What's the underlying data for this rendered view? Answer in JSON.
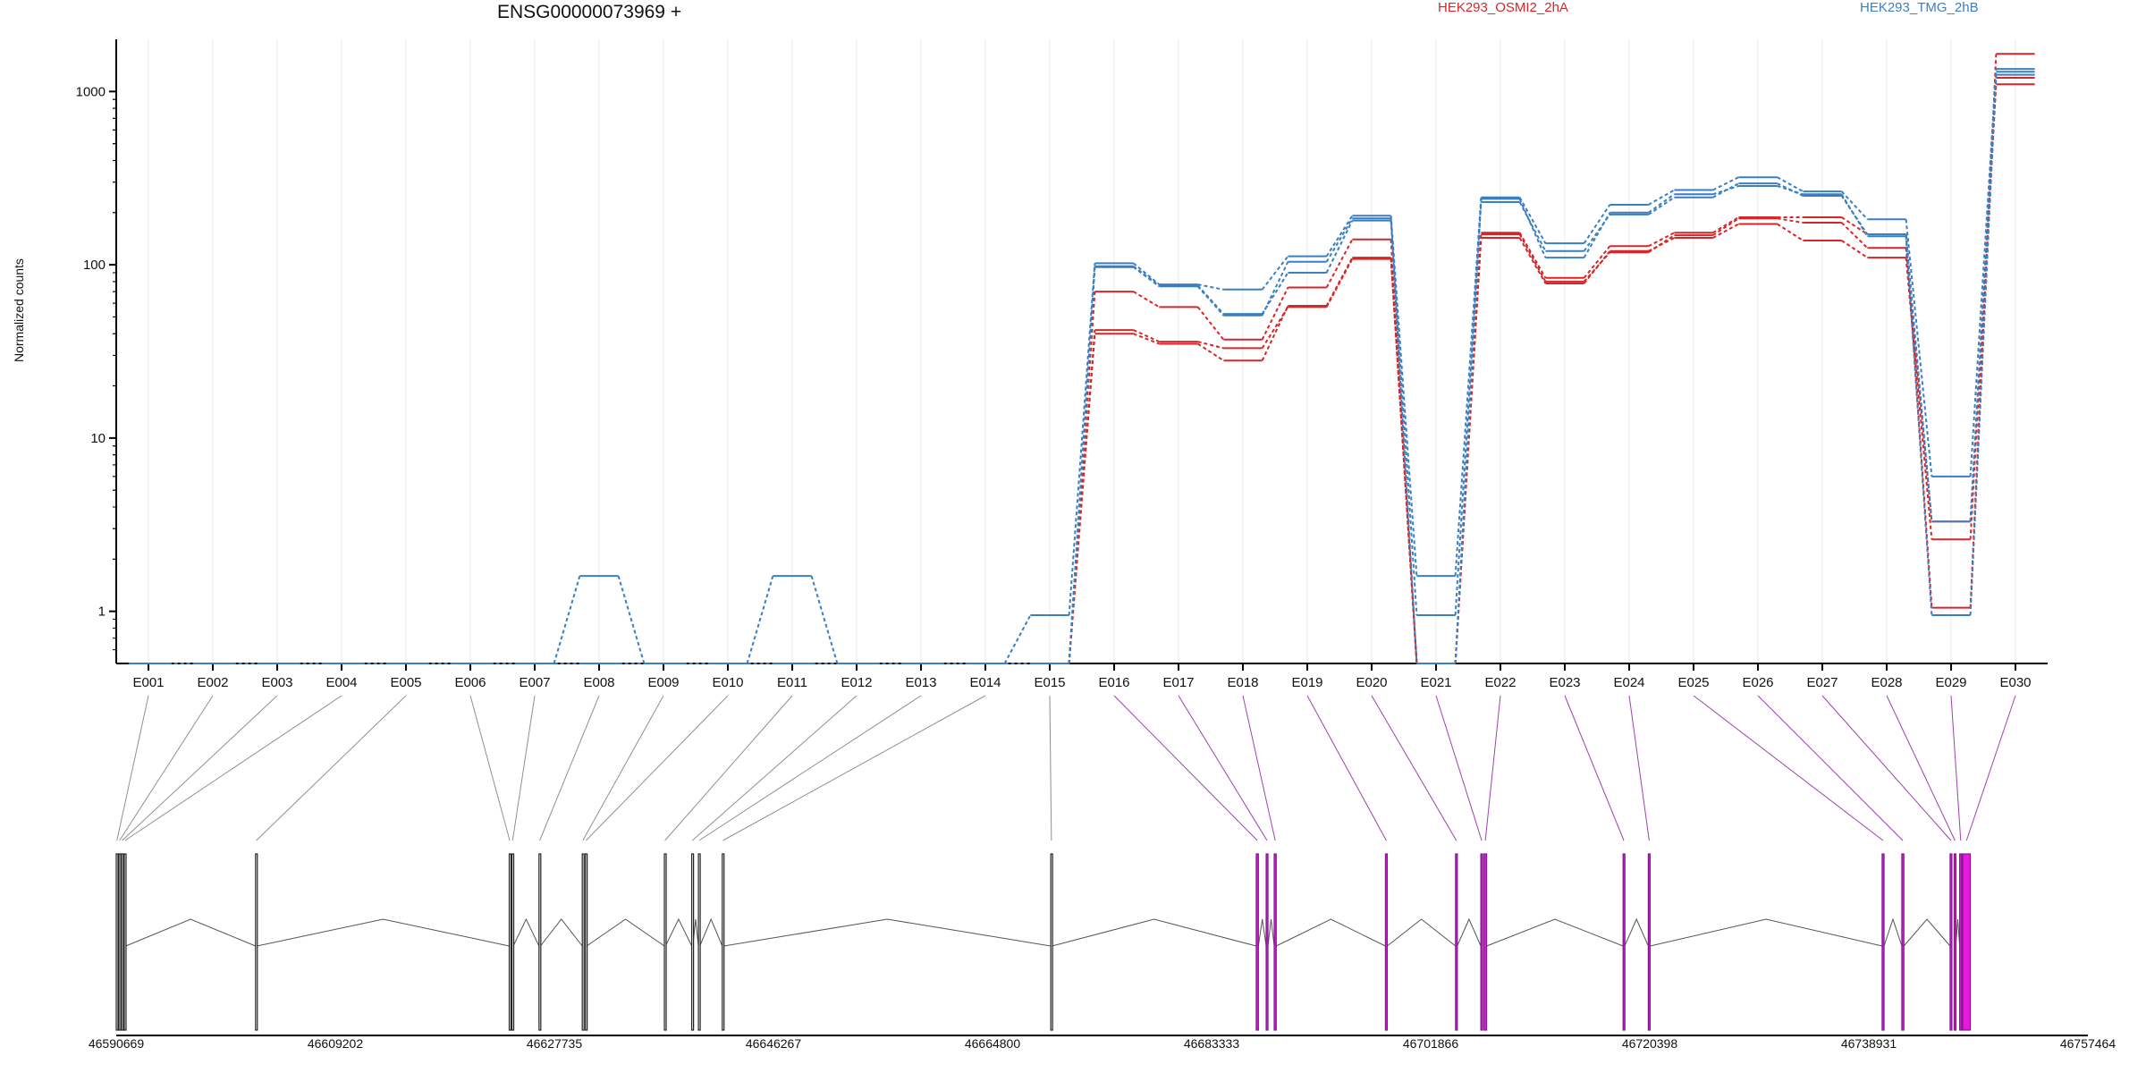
{
  "chart_data": {
    "type": "line",
    "title": "ENSG00000073969 +",
    "ylabel": "Normalized counts",
    "yscale": "log",
    "ylim": [
      0.5,
      2000
    ],
    "yticks": [
      1,
      10,
      100,
      1000
    ],
    "ytick_labels": [
      "1",
      "10",
      "100",
      "1000"
    ],
    "legend": [
      {
        "name": "HEK293_OSMI2_2hA",
        "color": "#d62728"
      },
      {
        "name": "HEK293_TMG_2hB",
        "color": "#3a7fc0"
      }
    ],
    "exons": [
      "E001",
      "E002",
      "E003",
      "E004",
      "E005",
      "E006",
      "E007",
      "E008",
      "E009",
      "E010",
      "E011",
      "E012",
      "E013",
      "E014",
      "E015",
      "E016",
      "E017",
      "E018",
      "E019",
      "E020",
      "E021",
      "E022",
      "E023",
      "E024",
      "E025",
      "E026",
      "E027",
      "E028",
      "E029",
      "E030"
    ],
    "series": [
      {
        "group": "HEK293_OSMI2_2hA",
        "color": "#d62728",
        "values": [
          0.5,
          0.5,
          0.5,
          0.5,
          0.5,
          0.5,
          0.5,
          0.5,
          0.5,
          0.5,
          0.5,
          0.5,
          0.5,
          0.5,
          0.5,
          70,
          57,
          37,
          74,
          140,
          0.5,
          153,
          84,
          128,
          153,
          188,
          188,
          150,
          1.05,
          1650
        ]
      },
      {
        "group": "HEK293_OSMI2_2hA",
        "color": "#d62728",
        "values": [
          0.5,
          0.5,
          0.5,
          0.5,
          0.5,
          0.5,
          0.5,
          0.5,
          0.5,
          0.5,
          0.5,
          0.5,
          0.5,
          0.5,
          0.5,
          42,
          36,
          33,
          57,
          108,
          0.5,
          143,
          78,
          120,
          143,
          172,
          138,
          110,
          2.6,
          1100
        ]
      },
      {
        "group": "HEK293_OSMI2_2hA",
        "color": "#d62728",
        "values": [
          0.5,
          0.5,
          0.5,
          0.5,
          0.5,
          0.5,
          0.5,
          0.5,
          0.5,
          0.5,
          0.5,
          0.5,
          0.5,
          0.5,
          0.5,
          40,
          35,
          28,
          58,
          110,
          0.5,
          150,
          80,
          118,
          148,
          185,
          175,
          125,
          3.3,
          1200
        ]
      },
      {
        "group": "HEK293_TMG_2hB",
        "color": "#3a7fc0",
        "values": [
          0.5,
          0.5,
          0.5,
          0.5,
          0.5,
          0.5,
          0.5,
          1.6,
          0.5,
          0.5,
          1.6,
          0.5,
          0.5,
          0.5,
          0.95,
          102,
          77,
          72,
          112,
          192,
          1.6,
          245,
          133,
          222,
          270,
          320,
          265,
          183,
          6.0,
          1350
        ]
      },
      {
        "group": "HEK293_TMG_2hB",
        "color": "#3a7fc0",
        "values": [
          0.5,
          0.5,
          0.5,
          0.5,
          0.5,
          0.5,
          0.5,
          0.5,
          0.5,
          0.5,
          0.5,
          0.5,
          0.5,
          0.5,
          0.5,
          98,
          76,
          52,
          90,
          180,
          0.95,
          230,
          120,
          195,
          245,
          295,
          250,
          150,
          3.3,
          1250
        ]
      },
      {
        "group": "HEK293_TMG_2hB",
        "color": "#3a7fc0",
        "values": [
          0.5,
          0.5,
          0.5,
          0.5,
          0.5,
          0.5,
          0.5,
          0.5,
          0.5,
          0.5,
          0.5,
          0.5,
          0.5,
          0.5,
          0.5,
          97,
          75,
          51,
          104,
          185,
          0.5,
          240,
          110,
          200,
          255,
          285,
          255,
          146,
          0.95,
          1300
        ]
      }
    ],
    "genome_axis": {
      "tick_labels": [
        "46590669",
        "46609202",
        "46627735",
        "46646267",
        "46664800",
        "46683333",
        "46701866",
        "46720398",
        "46738931",
        "46757464"
      ],
      "start": 46590669,
      "end": 46757464
    },
    "exon_coordinates": [
      {
        "id": "E001",
        "start": 46590669,
        "end": 46590779
      },
      {
        "id": "E002",
        "start": 46590899,
        "end": 46590989
      },
      {
        "id": "E003",
        "start": 46591119,
        "end": 46591229
      },
      {
        "id": "E004",
        "start": 46591349,
        "end": 46591469
      },
      {
        "id": "E005",
        "start": 46602454,
        "end": 46602574
      },
      {
        "id": "E006",
        "start": 46623915,
        "end": 46624005
      },
      {
        "id": "E007",
        "start": 46624145,
        "end": 46624255
      },
      {
        "id": "E008",
        "start": 46626435,
        "end": 46626555
      },
      {
        "id": "E009",
        "start": 46630094,
        "end": 46630184
      },
      {
        "id": "E010",
        "start": 46630354,
        "end": 46630464
      },
      {
        "id": "E011",
        "start": 46637040,
        "end": 46637130
      },
      {
        "id": "E012",
        "start": 46639355,
        "end": 46639445
      },
      {
        "id": "E013",
        "start": 46639920,
        "end": 46640040
      },
      {
        "id": "E014",
        "start": 46641935,
        "end": 46642055
      },
      {
        "id": "E015",
        "start": 46669730,
        "end": 46669830
      },
      {
        "id": "E016",
        "start": 46687110,
        "end": 46687290
      },
      {
        "id": "E017",
        "start": 46687950,
        "end": 46688100
      },
      {
        "id": "E018",
        "start": 46688630,
        "end": 46688800
      },
      {
        "id": "E019",
        "start": 46698040,
        "end": 46698190
      },
      {
        "id": "E020",
        "start": 46703970,
        "end": 46704110
      },
      {
        "id": "E021",
        "start": 46706110,
        "end": 46706260
      },
      {
        "id": "E022",
        "start": 46706380,
        "end": 46706600
      },
      {
        "id": "E023",
        "start": 46718145,
        "end": 46718275
      },
      {
        "id": "E024",
        "start": 46720278,
        "end": 46720428
      },
      {
        "id": "E025",
        "start": 46740060,
        "end": 46740220
      },
      {
        "id": "E026",
        "start": 46741725,
        "end": 46741895
      },
      {
        "id": "E027",
        "start": 46745810,
        "end": 46745960
      },
      {
        "id": "E028",
        "start": 46746150,
        "end": 46746290
      },
      {
        "id": "E029",
        "start": 46746620,
        "end": 46746790
      },
      {
        "id": "E030",
        "start": 46746870,
        "end": 46747520
      }
    ],
    "exon_highlight": [
      "E016",
      "E017",
      "E018",
      "E019",
      "E020",
      "E021",
      "E022",
      "E023",
      "E024",
      "E025",
      "E026",
      "E027",
      "E028",
      "E029",
      "E030"
    ],
    "colors": {
      "axis": "#000000",
      "grid": "#e6e9ef",
      "connector_gray": "#909090",
      "connector_purple": "#a040b0",
      "exon_fill": "#e818e0",
      "exon_stroke": "#7a1a8a",
      "intron": "#555555"
    }
  }
}
